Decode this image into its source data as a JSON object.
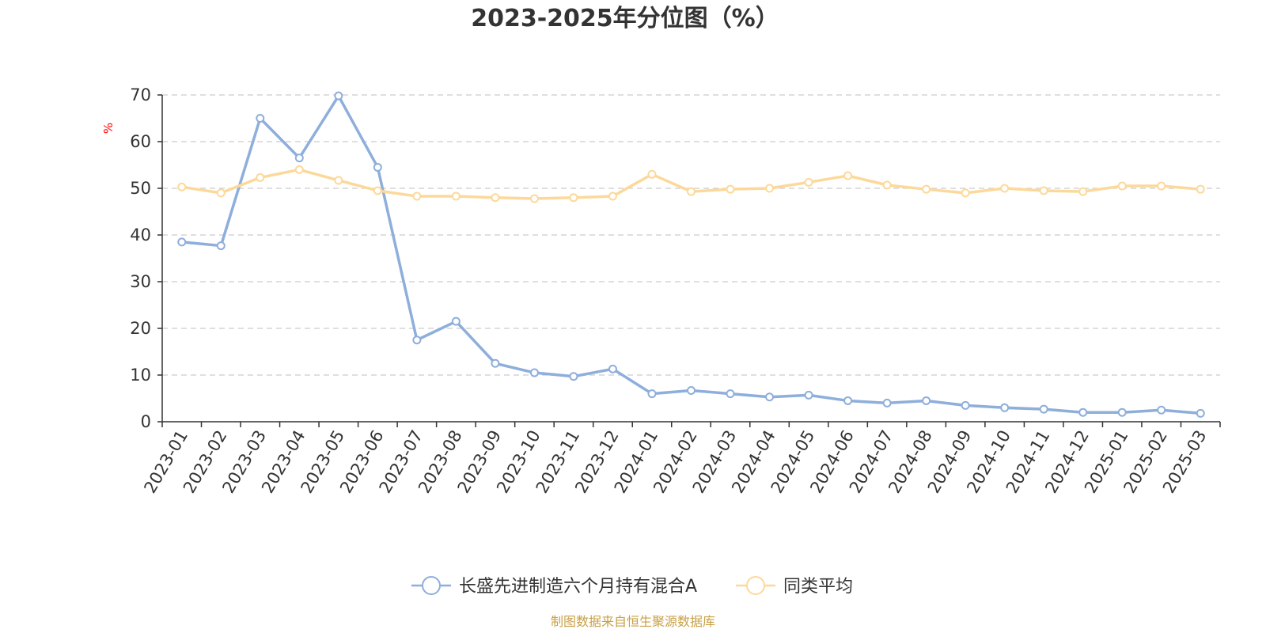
{
  "chart_data": {
    "type": "line",
    "title": "2023-2025年分位图（%）",
    "ylabel": "%",
    "ylim": [
      0,
      70
    ],
    "yticks": [
      "0",
      "10",
      "20",
      "30",
      "40",
      "50",
      "60",
      "70"
    ],
    "grid": true,
    "legend_position": "bottom",
    "categories": [
      "2023-01",
      "2023-02",
      "2023-03",
      "2023-04",
      "2023-05",
      "2023-06",
      "2023-07",
      "2023-08",
      "2023-09",
      "2023-10",
      "2023-11",
      "2023-12",
      "2024-01",
      "2024-02",
      "2024-03",
      "2024-04",
      "2024-05",
      "2024-06",
      "2024-07",
      "2024-08",
      "2024-09",
      "2024-10",
      "2024-11",
      "2024-12",
      "2025-01",
      "2025-02",
      "2025-03"
    ],
    "series": [
      {
        "name": "长盛先进制造六个月持有混合A",
        "color": "#8eaedb",
        "values": [
          38.5,
          37.7,
          65.0,
          56.5,
          69.8,
          54.5,
          17.5,
          21.5,
          12.5,
          10.5,
          9.7,
          11.3,
          6.0,
          6.7,
          6.0,
          5.3,
          5.7,
          4.5,
          4.0,
          4.5,
          3.5,
          3.0,
          2.7,
          2.0,
          2.0,
          2.5,
          1.8
        ]
      },
      {
        "name": "同类平均",
        "color": "#fcd99a",
        "values": [
          50.3,
          49.0,
          52.3,
          54.0,
          51.7,
          49.5,
          48.3,
          48.3,
          48.0,
          47.8,
          48.0,
          48.3,
          53.0,
          49.3,
          49.8,
          50.0,
          51.3,
          52.7,
          50.7,
          49.8,
          49.0,
          50.0,
          49.5,
          49.3,
          50.5,
          50.5,
          49.8
        ]
      }
    ]
  },
  "source": {
    "text": "制图数据来自恒生聚源数据库",
    "color": "#c8a046"
  },
  "colors": {
    "axis": "#333333",
    "grid": "#cccccc",
    "ylabel": "#ff0000"
  }
}
